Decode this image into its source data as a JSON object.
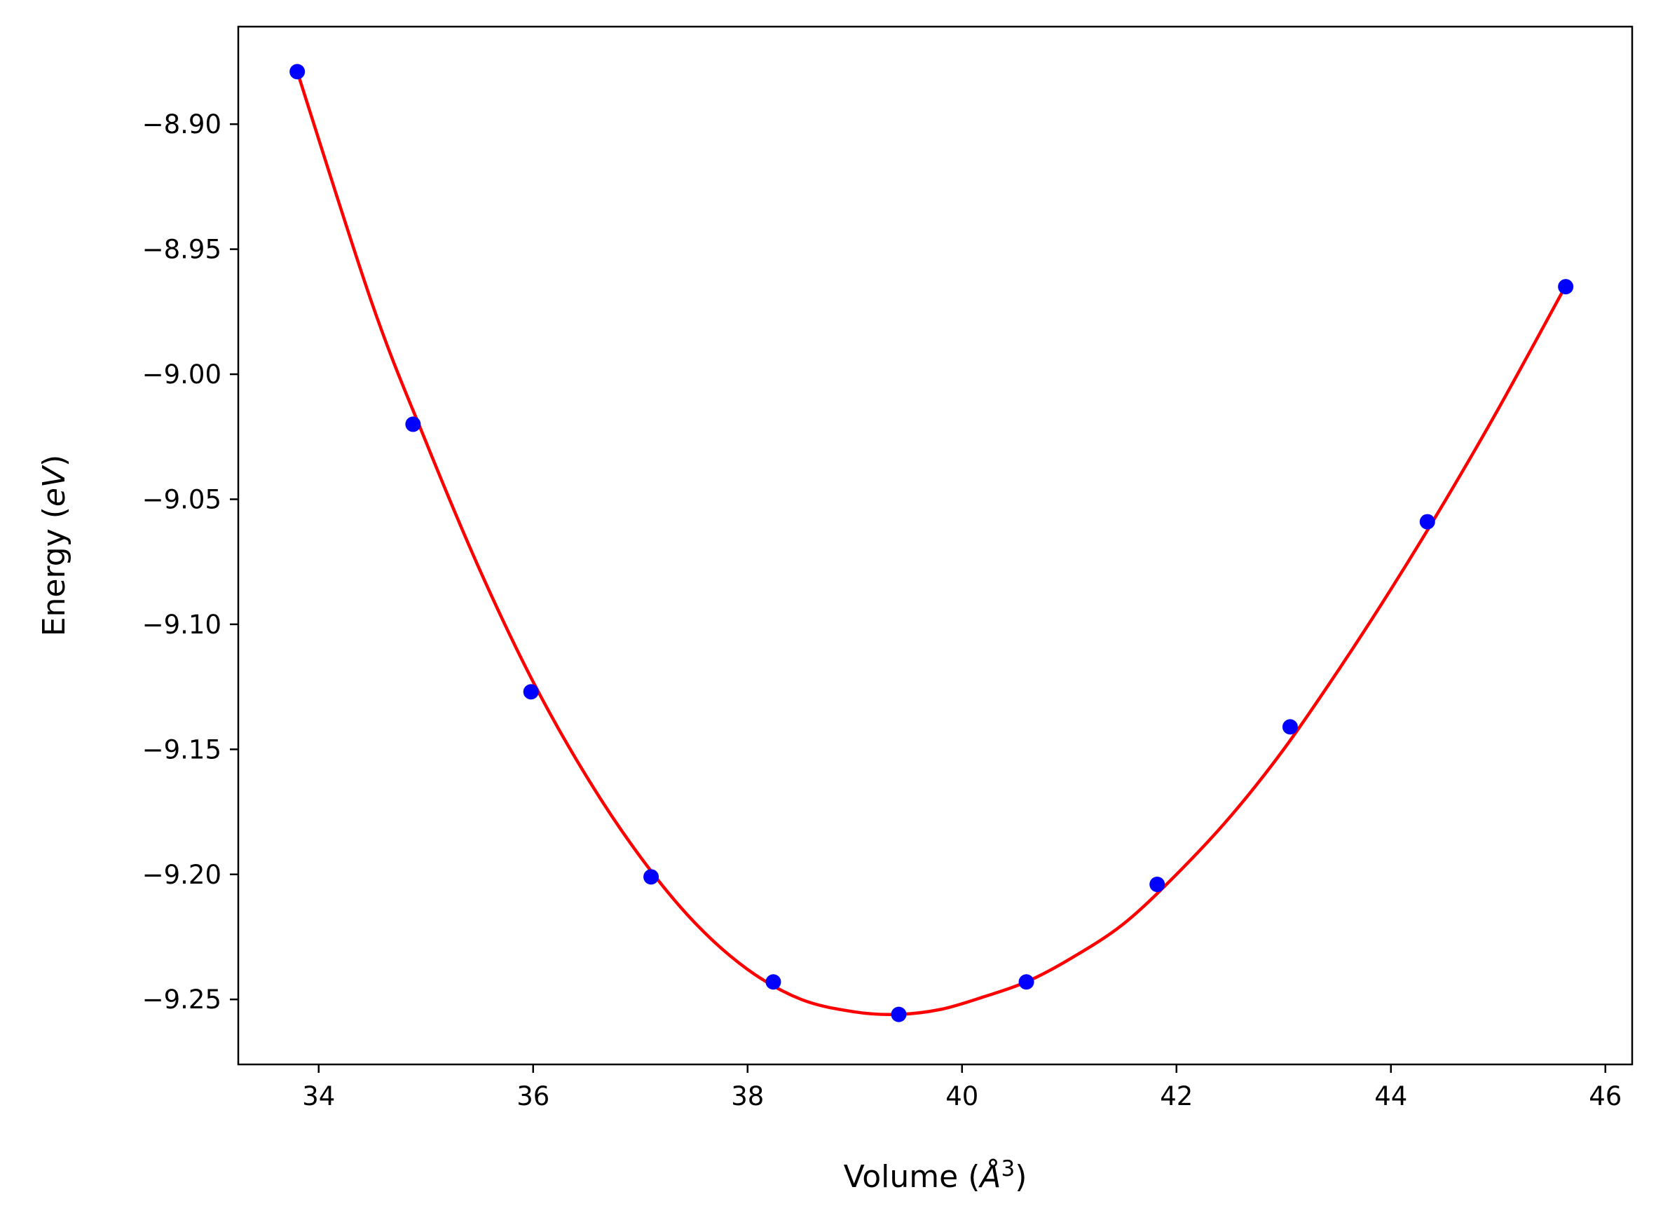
{
  "chart_data": {
    "type": "line",
    "title": "",
    "xlabel": {
      "main": "Volume (",
      "italic": "Å",
      "sup": "3",
      "close": ")"
    },
    "ylabel": {
      "main": "Energy (",
      "italic": "eV",
      "close": ")"
    },
    "xlim": [
      33.25,
      46.25
    ],
    "ylim": [
      -9.276,
      -8.861
    ],
    "xticks": [
      34,
      36,
      38,
      40,
      42,
      44,
      46
    ],
    "xtick_labels": [
      "34",
      "36",
      "38",
      "40",
      "42",
      "44",
      "46"
    ],
    "yticks": [
      -8.9,
      -8.95,
      -9.0,
      -9.05,
      -9.1,
      -9.15,
      -9.2,
      -9.25
    ],
    "ytick_labels": [
      "−8.90",
      "−8.95",
      "−9.00",
      "−9.05",
      "−9.10",
      "−9.15",
      "−9.20",
      "−9.25"
    ],
    "grid": false,
    "legend": false,
    "series": [
      {
        "kind": "fit-line",
        "color": "#ff0000",
        "x": [
          33.8,
          34.5,
          35.0,
          35.5,
          36.0,
          36.5,
          37.0,
          37.5,
          38.0,
          38.5,
          39.0,
          39.4,
          39.8,
          40.2,
          40.6,
          41.0,
          41.5,
          42.0,
          42.5,
          43.0,
          43.5,
          44.0,
          44.5,
          45.0,
          45.6
        ],
        "y": [
          -8.879,
          -8.972,
          -9.027,
          -9.078,
          -9.123,
          -9.161,
          -9.193,
          -9.219,
          -9.238,
          -9.25,
          -9.255,
          -9.256,
          -9.254,
          -9.249,
          -9.243,
          -9.234,
          -9.22,
          -9.2,
          -9.177,
          -9.15,
          -9.119,
          -9.086,
          -9.051,
          -9.014,
          -8.967
        ]
      },
      {
        "kind": "markers",
        "color": "#0000ff",
        "x": [
          33.8,
          34.88,
          35.98,
          37.1,
          38.24,
          39.41,
          40.6,
          41.82,
          43.06,
          44.34,
          45.63
        ],
        "y": [
          -8.879,
          -9.02,
          -9.127,
          -9.201,
          -9.243,
          -9.256,
          -9.243,
          -9.204,
          -9.141,
          -9.059,
          -8.965
        ]
      }
    ]
  }
}
